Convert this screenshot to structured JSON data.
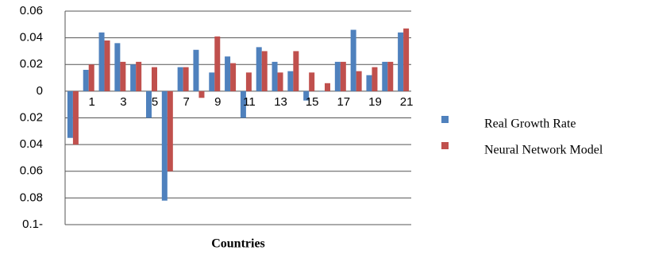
{
  "chart_data": {
    "type": "bar",
    "x_label": "Countries",
    "categories": [
      null,
      "1",
      null,
      "3",
      null,
      "5",
      null,
      "7",
      null,
      "9",
      null,
      "11",
      null,
      "13",
      null,
      "15",
      null,
      "17",
      null,
      "19",
      null,
      "21"
    ],
    "series": [
      {
        "name": "Real Growth Rate",
        "color": "#4f81bd",
        "values": [
          -0.035,
          0.016,
          0.044,
          0.036,
          0.02,
          -0.02,
          -0.082,
          0.018,
          0.031,
          0.014,
          0.026,
          -0.02,
          0.033,
          0.022,
          0.015,
          -0.007,
          0,
          0.022,
          0.046,
          0.012,
          0.022,
          0.044
        ]
      },
      {
        "name": "Neural Network Model",
        "color": "#c0504d",
        "values": [
          -0.04,
          0.02,
          0.038,
          0.022,
          0.022,
          0.018,
          -0.06,
          0.018,
          -0.005,
          0.041,
          0.021,
          0.014,
          0.03,
          0.014,
          0.03,
          0.014,
          0.006,
          0.022,
          0.015,
          0.018,
          0.022,
          0.047
        ]
      }
    ],
    "ylim": [
      -0.1,
      0.06
    ],
    "yticks": [
      0.06,
      0.04,
      0.02,
      0,
      {
        "value": -0.02,
        "label": "0.02"
      },
      {
        "value": -0.04,
        "label": "0.04"
      },
      {
        "value": -0.06,
        "label": "0.06"
      },
      {
        "value": -0.08,
        "label": "0.08"
      },
      {
        "value": -0.1,
        "label": "0.1-"
      }
    ],
    "grid": true,
    "legend": "right"
  }
}
